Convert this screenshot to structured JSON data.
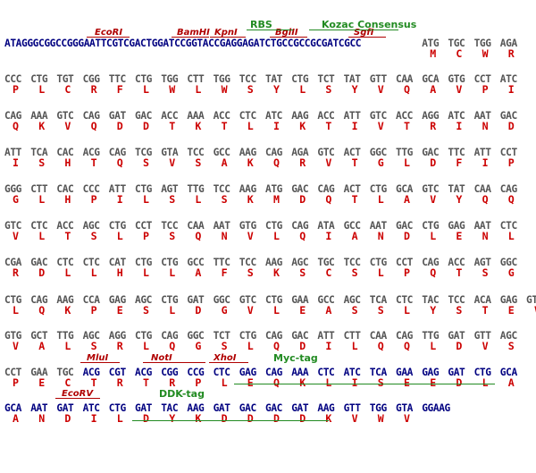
{
  "preamble": "ATAGGGCGGCCGGGAATTCGTCGACTGGATCCGGTACCGAGGAGATCTGCCGCCGCGATCGCC",
  "colors": {
    "vector_seq": "#000080",
    "orf_seq": "#555555",
    "amino_acid": "#cc0000",
    "restriction_site": "#b00000",
    "feature": "#228b22"
  },
  "header_codons": [
    [
      "ATG",
      "M"
    ],
    [
      "TGC",
      "C"
    ],
    [
      "TGG",
      "W"
    ],
    [
      "AGA",
      "R"
    ]
  ],
  "lines": [
    [
      [
        "CCC",
        "P"
      ],
      [
        "CTG",
        "L"
      ],
      [
        "TGT",
        "C"
      ],
      [
        "CGG",
        "R"
      ],
      [
        "TTC",
        "F"
      ],
      [
        "CTG",
        "L"
      ],
      [
        "TGG",
        "W"
      ],
      [
        "CTT",
        "L"
      ],
      [
        "TGG",
        "W"
      ],
      [
        "TCC",
        "S"
      ],
      [
        "TAT",
        "Y"
      ],
      [
        "CTG",
        "L"
      ],
      [
        "TCT",
        "S"
      ],
      [
        "TAT",
        "Y"
      ],
      [
        "GTT",
        "V"
      ],
      [
        "CAA",
        "Q"
      ],
      [
        "GCA",
        "A"
      ],
      [
        "GTG",
        "V"
      ],
      [
        "CCT",
        "P"
      ],
      [
        "ATC",
        "I"
      ]
    ],
    [
      [
        "CAG",
        "Q"
      ],
      [
        "AAA",
        "K"
      ],
      [
        "GTC",
        "V"
      ],
      [
        "CAG",
        "Q"
      ],
      [
        "GAT",
        "D"
      ],
      [
        "GAC",
        "D"
      ],
      [
        "ACC",
        "T"
      ],
      [
        "AAA",
        "K"
      ],
      [
        "ACC",
        "T"
      ],
      [
        "CTC",
        "L"
      ],
      [
        "ATC",
        "I"
      ],
      [
        "AAG",
        "K"
      ],
      [
        "ACC",
        "T"
      ],
      [
        "ATT",
        "I"
      ],
      [
        "GTC",
        "V"
      ],
      [
        "ACC",
        "T"
      ],
      [
        "AGG",
        "R"
      ],
      [
        "ATC",
        "I"
      ],
      [
        "AAT",
        "N"
      ],
      [
        "GAC",
        "D"
      ]
    ],
    [
      [
        "ATT",
        "I"
      ],
      [
        "TCA",
        "S"
      ],
      [
        "CAC",
        "H"
      ],
      [
        "ACG",
        "T"
      ],
      [
        "CAG",
        "Q"
      ],
      [
        "TCG",
        "S"
      ],
      [
        "GTA",
        "V"
      ],
      [
        "TCC",
        "S"
      ],
      [
        "GCC",
        "A"
      ],
      [
        "AAG",
        "K"
      ],
      [
        "CAG",
        "Q"
      ],
      [
        "AGA",
        "R"
      ],
      [
        "GTC",
        "V"
      ],
      [
        "ACT",
        "T"
      ],
      [
        "GGC",
        "G"
      ],
      [
        "TTG",
        "L"
      ],
      [
        "GAC",
        "D"
      ],
      [
        "TTC",
        "F"
      ],
      [
        "ATT",
        "I"
      ],
      [
        "CCT",
        "P"
      ]
    ],
    [
      [
        "GGG",
        "G"
      ],
      [
        "CTT",
        "L"
      ],
      [
        "CAC",
        "H"
      ],
      [
        "CCC",
        "P"
      ],
      [
        "ATT",
        "I"
      ],
      [
        "CTG",
        "L"
      ],
      [
        "AGT",
        "S"
      ],
      [
        "TTG",
        "L"
      ],
      [
        "TCC",
        "S"
      ],
      [
        "AAG",
        "K"
      ],
      [
        "ATG",
        "M"
      ],
      [
        "GAC",
        "D"
      ],
      [
        "CAG",
        "Q"
      ],
      [
        "ACT",
        "T"
      ],
      [
        "CTG",
        "L"
      ],
      [
        "GCA",
        "A"
      ],
      [
        "GTC",
        "V"
      ],
      [
        "TAT",
        "Y"
      ],
      [
        "CAA",
        "Q"
      ],
      [
        "CAG",
        "Q"
      ]
    ],
    [
      [
        "GTC",
        "V"
      ],
      [
        "CTC",
        "L"
      ],
      [
        "ACC",
        "T"
      ],
      [
        "AGC",
        "S"
      ],
      [
        "CTG",
        "L"
      ],
      [
        "CCT",
        "P"
      ],
      [
        "TCC",
        "S"
      ],
      [
        "CAA",
        "Q"
      ],
      [
        "AAT",
        "N"
      ],
      [
        "GTG",
        "V"
      ],
      [
        "CTG",
        "L"
      ],
      [
        "CAG",
        "Q"
      ],
      [
        "ATA",
        "I"
      ],
      [
        "GCC",
        "A"
      ],
      [
        "AAT",
        "N"
      ],
      [
        "GAC",
        "D"
      ],
      [
        "CTG",
        "L"
      ],
      [
        "GAG",
        "E"
      ],
      [
        "AAT",
        "N"
      ],
      [
        "CTC",
        "L"
      ]
    ],
    [
      [
        "CGA",
        "R"
      ],
      [
        "GAC",
        "D"
      ],
      [
        "CTC",
        "L"
      ],
      [
        "CTC",
        "L"
      ],
      [
        "CAT",
        "H"
      ],
      [
        "CTG",
        "L"
      ],
      [
        "CTG",
        "L"
      ],
      [
        "GCC",
        "A"
      ],
      [
        "TTC",
        "F"
      ],
      [
        "TCC",
        "S"
      ],
      [
        "AAG",
        "K"
      ],
      [
        "AGC",
        "S"
      ],
      [
        "TGC",
        "C"
      ],
      [
        "TCC",
        "S"
      ],
      [
        "CTG",
        "L"
      ],
      [
        "CCT",
        "P"
      ],
      [
        "CAG",
        "Q"
      ],
      [
        "ACC",
        "T"
      ],
      [
        "AGT",
        "S"
      ],
      [
        "GGC",
        "G"
      ]
    ],
    [
      [
        "CTG",
        "L"
      ],
      [
        "CAG",
        "Q"
      ],
      [
        "AAG",
        "K"
      ],
      [
        "CCA",
        "P"
      ],
      [
        "GAG",
        "E"
      ],
      [
        "AGC",
        "S"
      ],
      [
        "CTG",
        "L"
      ],
      [
        "GAT",
        "D"
      ],
      [
        "GGC",
        "G"
      ],
      [
        "GTC",
        "V"
      ],
      [
        "CTG",
        "L"
      ],
      [
        "GAA",
        "E"
      ],
      [
        "GCC",
        "A"
      ],
      [
        "AGC",
        "S"
      ],
      [
        "TCA",
        "S"
      ],
      [
        "CTC",
        "L"
      ],
      [
        "TAC",
        "Y"
      ],
      [
        "TCC",
        "S"
      ],
      [
        "ACA",
        "T"
      ],
      [
        "GAG",
        "E"
      ],
      [
        "GTG",
        "V"
      ]
    ],
    [
      [
        "GTG",
        "V"
      ],
      [
        "GCT",
        "A"
      ],
      [
        "TTG",
        "L"
      ],
      [
        "AGC",
        "S"
      ],
      [
        "AGG",
        "R"
      ],
      [
        "CTG",
        "L"
      ],
      [
        "CAG",
        "Q"
      ],
      [
        "GGC",
        "G"
      ],
      [
        "TCT",
        "S"
      ],
      [
        "CTG",
        "L"
      ],
      [
        "CAG",
        "Q"
      ],
      [
        "GAC",
        "D"
      ],
      [
        "ATT",
        "I"
      ],
      [
        "CTT",
        "L"
      ],
      [
        "CAA",
        "Q"
      ],
      [
        "CAG",
        "Q"
      ],
      [
        "TTG",
        "L"
      ],
      [
        "GAT",
        "D"
      ],
      [
        "GTT",
        "V"
      ],
      [
        "AGC",
        "S"
      ]
    ],
    [
      [
        "CCT",
        "P"
      ],
      [
        "GAA",
        "E"
      ],
      [
        "TGC",
        "C"
      ],
      [
        "ACG",
        "T"
      ],
      [
        "CGT",
        "R"
      ],
      [
        "ACG",
        "T"
      ],
      [
        "CGG",
        "R"
      ],
      [
        "CCG",
        "P"
      ],
      [
        "CTC",
        "L"
      ],
      [
        "GAG",
        "E"
      ],
      [
        "CAG",
        "Q"
      ],
      [
        "AAA",
        "K"
      ],
      [
        "CTC",
        "L"
      ],
      [
        "ATC",
        "I"
      ],
      [
        "TCA",
        "S"
      ],
      [
        "GAA",
        "E"
      ],
      [
        "GAG",
        "E"
      ],
      [
        "GAT",
        "D"
      ],
      [
        "CTG",
        "L"
      ],
      [
        "GCA",
        "A"
      ]
    ],
    [
      [
        "GCA",
        "A"
      ],
      [
        "AAT",
        "N"
      ],
      [
        "GAT",
        "D"
      ],
      [
        "ATC",
        "I"
      ],
      [
        "CTG",
        "L"
      ],
      [
        "GAT",
        "D"
      ],
      [
        "TAC",
        "Y"
      ],
      [
        "AAG",
        "K"
      ],
      [
        "GAT",
        "D"
      ],
      [
        "GAC",
        "D"
      ],
      [
        "GAC",
        "D"
      ],
      [
        "GAT",
        "D"
      ],
      [
        "AAG",
        "K"
      ],
      [
        "GTT",
        "V"
      ],
      [
        "TGG",
        "W"
      ],
      [
        "GTA",
        "V"
      ],
      [
        "GGAAG",
        ""
      ]
    ]
  ],
  "restriction_sites": {
    "ecori_top": "EcoRI",
    "bamhi": "BamHI",
    "kpni": "KpnI",
    "bglii": "BglII",
    "sgfi": "SgfI",
    "mlui": "MluI",
    "noti": "NotI",
    "xhoi": "XhoI",
    "ecorv": "EcoRV"
  },
  "features": {
    "rbs": "RBS",
    "kozac": "Kozac Consensus",
    "myc": "Myc-tag",
    "ddk": "DDK-tag"
  }
}
